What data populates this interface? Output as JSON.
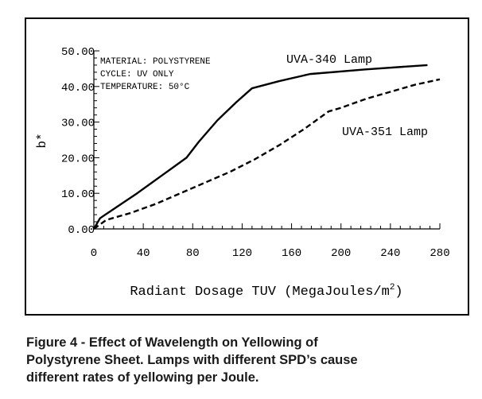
{
  "chart_data": {
    "type": "line",
    "title": "",
    "xlabel": "Radiant Dosage TUV (MegaJoules/m",
    "xlabel_superscript": "2",
    "xlabel_close": ")",
    "ylabel": "b*",
    "xlim": [
      0,
      280
    ],
    "ylim": [
      0,
      50
    ],
    "xticks": [
      "0",
      "40",
      "80",
      "120",
      "160",
      "200",
      "240",
      "280"
    ],
    "yticks": [
      "0.00",
      "10.00",
      "20.00",
      "30.00",
      "40.00",
      "50.00"
    ],
    "grid": false,
    "annotations": [
      "MATERIAL: POLYSTYRENE",
      "CYCLE:  UV ONLY",
      "TEMPERATURE: 50°C"
    ],
    "series": [
      {
        "name": "UVA-340 Lamp",
        "style": "solid",
        "x": [
          0,
          5,
          20,
          35,
          45,
          55,
          65,
          75,
          85,
          100,
          115,
          128,
          150,
          175,
          220,
          270
        ],
        "y": [
          0,
          3,
          6.5,
          10,
          12.5,
          15,
          17.5,
          20,
          24.5,
          30.5,
          35.5,
          39.5,
          41.5,
          43.5,
          44.8,
          46
        ]
      },
      {
        "name": "UVA-351 Lamp",
        "style": "dashed",
        "x": [
          0,
          10,
          30,
          50,
          70,
          90,
          110,
          130,
          150,
          170,
          190,
          200,
          220,
          240,
          260,
          280
        ],
        "y": [
          0,
          2.5,
          4.5,
          7,
          10,
          13,
          16,
          19.5,
          23.5,
          28,
          33,
          34,
          36.5,
          38.5,
          40.5,
          42
        ]
      }
    ]
  },
  "caption": {
    "line1": "Figure 4 - Effect of Wavelength on Yellowing of",
    "line2": "Polystyrene Sheet. Lamps with different SPD’s cause",
    "line3": "different rates of yellowing per Joule."
  },
  "colors": {
    "line": "#000000",
    "text": "#1a1a1a"
  }
}
